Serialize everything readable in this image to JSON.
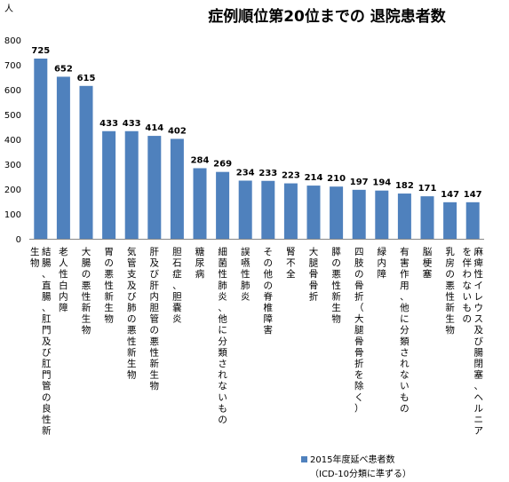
{
  "chart_data": {
    "type": "bar",
    "title": "症例順位第20位までの 退院患者数",
    "y_unit": "人",
    "ylim": [
      0,
      800
    ],
    "y_ticks": [
      0,
      100,
      200,
      300,
      400,
      500,
      600,
      700,
      800
    ],
    "grid": false,
    "legend_position": "bottom",
    "bar_color": "#4f81bd",
    "categories": [
      "結腸、直腸、肛門及び肛門管の良性新生物",
      "老人性白内障",
      "大腸の悪性新生物",
      "胃の悪性新生物",
      "気管支及び肺の悪性新生物",
      "肝及び肝内胆管の悪性新生物",
      "胆石症、胆嚢炎",
      "糖尿病",
      "細菌性肺炎、他に分類されないもの",
      "誤嚥性肺炎",
      "その他の脊椎障害",
      "腎不全",
      "大腿骨骨折",
      "膵の悪性新生物",
      "四肢の骨折（大腿骨骨折を除く）",
      "緑内障",
      "有害作用、他に分類されないもの",
      "脳梗塞",
      "乳房の悪性新生物",
      "麻痺性イレウス及び腸閉塞、ヘルニアを伴わないもの"
    ],
    "series": [
      {
        "name": "2015年度延べ患者数（ICD-10分類に準ずる）",
        "legend_line1": "2015年度延べ患者数",
        "legend_line2": "（ICD-10分類に準ずる）",
        "values": [
          725,
          652,
          615,
          433,
          433,
          414,
          402,
          284,
          269,
          234,
          233,
          223,
          214,
          210,
          197,
          194,
          182,
          171,
          147,
          147
        ]
      }
    ]
  }
}
